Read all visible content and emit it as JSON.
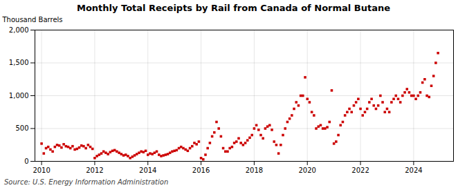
{
  "chart_data": {
    "type": "scatter",
    "title": "Monthly Total Receipts by Rail from Canada of Normal Butane",
    "ylabel": "Thousand Barrels",
    "source": "Source: U.S. Energy Information Administration",
    "color": "#cc0000",
    "marker": "square",
    "grid": true,
    "xlim": [
      2009.75,
      2025.5
    ],
    "xticks": [
      2010,
      2012,
      2014,
      2016,
      2018,
      2020,
      2022,
      2024
    ],
    "ylim": [
      0,
      2000
    ],
    "yticks": [
      0,
      500,
      {
        "value": 1000,
        "label": "1,000"
      },
      {
        "value": 1500,
        "label": "1,500"
      },
      {
        "value": 2000,
        "label": "2,000"
      }
    ],
    "x": [
      2010.0,
      2010.083,
      2010.167,
      2010.25,
      2010.333,
      2010.417,
      2010.5,
      2010.583,
      2010.667,
      2010.75,
      2010.833,
      2010.917,
      2011.0,
      2011.083,
      2011.167,
      2011.25,
      2011.333,
      2011.417,
      2011.5,
      2011.583,
      2011.667,
      2011.75,
      2011.833,
      2011.917,
      2012.0,
      2012.083,
      2012.167,
      2012.25,
      2012.333,
      2012.417,
      2012.5,
      2012.583,
      2012.667,
      2012.75,
      2012.833,
      2012.917,
      2013.0,
      2013.083,
      2013.167,
      2013.25,
      2013.333,
      2013.417,
      2013.5,
      2013.583,
      2013.667,
      2013.75,
      2013.833,
      2013.917,
      2014.0,
      2014.083,
      2014.167,
      2014.25,
      2014.333,
      2014.417,
      2014.5,
      2014.583,
      2014.667,
      2014.75,
      2014.833,
      2014.917,
      2015.0,
      2015.083,
      2015.167,
      2015.25,
      2015.333,
      2015.417,
      2015.5,
      2015.583,
      2015.667,
      2015.75,
      2015.833,
      2015.917,
      2016.0,
      2016.083,
      2016.167,
      2016.25,
      2016.333,
      2016.417,
      2016.5,
      2016.583,
      2016.667,
      2016.75,
      2016.833,
      2016.917,
      2017.0,
      2017.083,
      2017.167,
      2017.25,
      2017.333,
      2017.417,
      2017.5,
      2017.583,
      2017.667,
      2017.75,
      2017.833,
      2017.917,
      2018.0,
      2018.083,
      2018.167,
      2018.25,
      2018.333,
      2018.417,
      2018.5,
      2018.583,
      2018.667,
      2018.75,
      2018.833,
      2018.917,
      2019.0,
      2019.083,
      2019.167,
      2019.25,
      2019.333,
      2019.417,
      2019.5,
      2019.583,
      2019.667,
      2019.75,
      2019.833,
      2019.917,
      2020.0,
      2020.083,
      2020.167,
      2020.25,
      2020.333,
      2020.417,
      2020.5,
      2020.583,
      2020.667,
      2020.75,
      2020.833,
      2020.917,
      2021.0,
      2021.083,
      2021.167,
      2021.25,
      2021.333,
      2021.417,
      2021.5,
      2021.583,
      2021.667,
      2021.75,
      2021.833,
      2021.917,
      2022.0,
      2022.083,
      2022.167,
      2022.25,
      2022.333,
      2022.417,
      2022.5,
      2022.583,
      2022.667,
      2022.75,
      2022.833,
      2022.917,
      2023.0,
      2023.083,
      2023.167,
      2023.25,
      2023.333,
      2023.417,
      2023.5,
      2023.583,
      2023.667,
      2023.75,
      2023.833,
      2023.917,
      2024.0,
      2024.083,
      2024.167,
      2024.25,
      2024.333,
      2024.417,
      2024.5,
      2024.583,
      2024.667,
      2024.75,
      2024.833,
      2024.917
    ],
    "values": [
      270,
      120,
      200,
      220,
      180,
      150,
      220,
      250,
      240,
      210,
      260,
      230,
      220,
      200,
      230,
      180,
      190,
      210,
      240,
      230,
      200,
      250,
      220,
      190,
      50,
      80,
      100,
      120,
      150,
      130,
      110,
      140,
      160,
      170,
      150,
      130,
      110,
      90,
      100,
      80,
      50,
      70,
      90,
      110,
      130,
      150,
      140,
      160,
      100,
      120,
      110,
      130,
      150,
      100,
      80,
      90,
      100,
      110,
      130,
      150,
      160,
      170,
      200,
      220,
      200,
      180,
      160,
      200,
      230,
      280,
      260,
      300,
      50,
      30,
      100,
      200,
      280,
      380,
      440,
      600,
      500,
      380,
      200,
      150,
      150,
      200,
      220,
      280,
      300,
      350,
      280,
      250,
      280,
      320,
      360,
      400,
      500,
      550,
      480,
      400,
      350,
      500,
      530,
      550,
      480,
      300,
      250,
      120,
      250,
      400,
      500,
      600,
      650,
      700,
      800,
      900,
      850,
      1000,
      1000,
      1280,
      950,
      900,
      750,
      700,
      500,
      530,
      550,
      500,
      500,
      520,
      600,
      1080,
      270,
      300,
      400,
      550,
      600,
      700,
      750,
      800,
      750,
      850,
      900,
      950,
      800,
      700,
      750,
      800,
      900,
      950,
      850,
      800,
      850,
      1000,
      900,
      750,
      800,
      750,
      900,
      950,
      1000,
      950,
      900,
      1000,
      1050,
      1100,
      1050,
      1000,
      1000,
      950,
      1000,
      1050,
      1200,
      1250,
      1000,
      980,
      1150,
      1300,
      1500,
      1650
    ]
  }
}
